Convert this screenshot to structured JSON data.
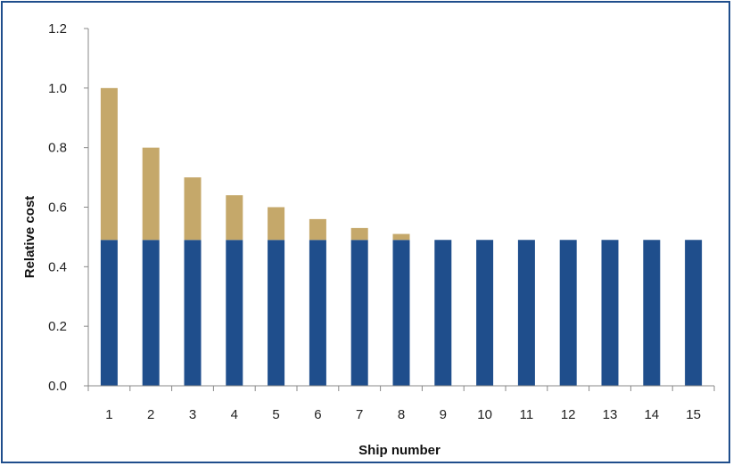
{
  "chart_data": {
    "type": "bar",
    "stacked": true,
    "title": "",
    "xlabel": "Ship number",
    "ylabel": "Relative cost",
    "categories": [
      "1",
      "2",
      "3",
      "4",
      "5",
      "6",
      "7",
      "8",
      "9",
      "10",
      "11",
      "12",
      "13",
      "14",
      "15"
    ],
    "series": [
      {
        "color": "#1f4e8c",
        "values": [
          0.49,
          0.49,
          0.49,
          0.49,
          0.49,
          0.49,
          0.49,
          0.49,
          0.49,
          0.49,
          0.49,
          0.49,
          0.49,
          0.49,
          0.49
        ]
      },
      {
        "color": "#c5a86a",
        "values": [
          0.51,
          0.31,
          0.21,
          0.15,
          0.11,
          0.07,
          0.04,
          0.02,
          0,
          0,
          0,
          0,
          0,
          0,
          0
        ]
      }
    ],
    "ylim": [
      0,
      1.2
    ],
    "yticks": [
      "0.0",
      "0.2",
      "0.4",
      "0.6",
      "0.8",
      "1.0",
      "1.2"
    ],
    "grid": false,
    "legend": "none"
  }
}
